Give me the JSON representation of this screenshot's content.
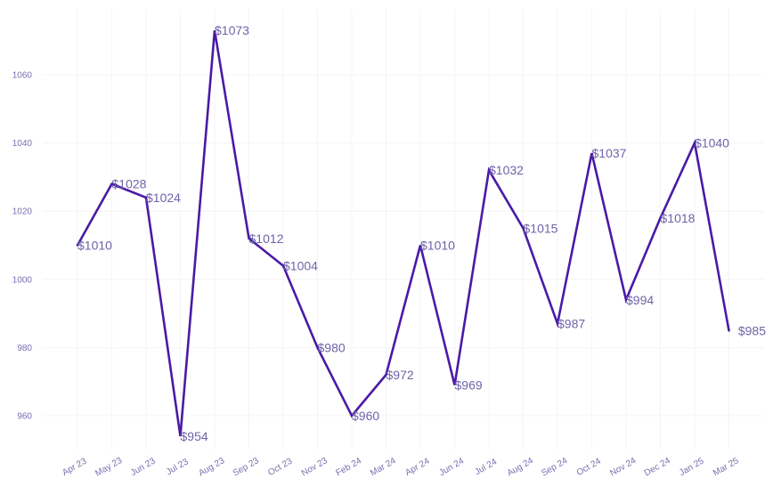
{
  "colors": {
    "line": "#4b1aa6",
    "label": "#6e64a8",
    "tick": "#7a6fb0",
    "grid": "#f4f4f7"
  },
  "chart_data": {
    "type": "line",
    "title": "",
    "xlabel": "",
    "ylabel": "",
    "categories": [
      "Apr 23",
      "May 23",
      "Jun 23",
      "Jul 23",
      "Aug 23",
      "Sep 23",
      "Oct 23",
      "Nov 23",
      "Feb 24",
      "Mar 24",
      "Apr 24",
      "Jun 24",
      "Jul 24",
      "Aug 24",
      "Sep 24",
      "Oct 24",
      "Nov 24",
      "Dec 24",
      "Jan 25",
      "Mar 25"
    ],
    "values": [
      1010,
      1028,
      1024,
      954,
      1073,
      1012,
      1004,
      980,
      960,
      972,
      1010,
      969,
      1032,
      1015,
      987,
      1037,
      994,
      1018,
      1040,
      985
    ],
    "data_labels": [
      "$1010",
      "$1028",
      "$1024",
      "$954",
      "$1073",
      "$1012",
      "$1004",
      "$980",
      "$960",
      "$972",
      "$1010",
      "$969",
      "$1032",
      "$1015",
      "$987",
      "$1037",
      "$994",
      "$1018",
      "$1040",
      "$985"
    ],
    "y_ticks": [
      960,
      980,
      1000,
      1020,
      1040,
      1060
    ],
    "y_tick_labels": [
      "960",
      "980",
      "1000",
      "1020",
      "1040",
      "1060"
    ],
    "ylim": [
      948,
      1080
    ],
    "grid": true,
    "legend": "none"
  }
}
